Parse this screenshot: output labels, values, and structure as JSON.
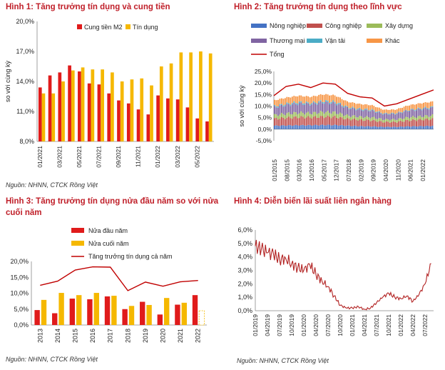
{
  "chart_data": [
    {
      "type": "bar",
      "title": "Hình 1: Tăng trưởng tín dụng và cung tiền",
      "ylabel": "so với cùng kỳ",
      "ylim": [
        8.0,
        20.0
      ],
      "yticks": [
        "8,0%",
        "11,0%",
        "14,0%",
        "17,0%",
        "20,0%"
      ],
      "categories": [
        "01/2021",
        "02/2021",
        "03/2021",
        "04/2021",
        "05/2021",
        "06/2021",
        "07/2021",
        "08/2021",
        "09/2021",
        "10/2021",
        "11/2021",
        "12/2021",
        "01/2022",
        "02/2022",
        "03/2022",
        "04/2022",
        "05/2022",
        "06/2022"
      ],
      "xtick_labels": [
        "01/2021",
        "03/2021",
        "05/2021",
        "07/2021",
        "09/2021",
        "11/2021",
        "01/2022",
        "03/2022",
        "05/2022"
      ],
      "series": [
        {
          "name": "Cung tiền M2",
          "color": "#e01b1b",
          "values": [
            13.4,
            14.6,
            14.9,
            15.6,
            15.0,
            13.8,
            13.7,
            12.8,
            12.1,
            11.8,
            11.2,
            10.7,
            12.6,
            12.3,
            12.2,
            11.4,
            10.3,
            10.0
          ]
        },
        {
          "name": "Tín dụng",
          "color": "#f5b800",
          "values": [
            12.8,
            12.8,
            14.0,
            15.1,
            15.4,
            15.2,
            15.2,
            14.9,
            14.0,
            14.2,
            14.3,
            13.6,
            15.5,
            15.8,
            16.9,
            16.9,
            17.0,
            16.8
          ]
        }
      ],
      "source": "Nguồn: NHNN, CTCK Rồng Việt"
    },
    {
      "type": "area",
      "title": "Hình 2: Tăng trưởng tín dụng theo lĩnh vực",
      "ylabel": "so với cùng kỳ",
      "ylim": [
        -5.0,
        25.0
      ],
      "yticks": [
        "-5,0%",
        "0,0%",
        "5,0%",
        "10,0%",
        "15,0%",
        "20,0%",
        "25,0%"
      ],
      "xtick_labels": [
        "01/2015",
        "08/2015",
        "03/2016",
        "10/2016",
        "05/2017",
        "12/2017",
        "07/2018",
        "02/2019",
        "09/2019",
        "04/2020",
        "11/2020",
        "06/2021",
        "01/2022"
      ],
      "legend": [
        {
          "name": "Nông nghiệp",
          "color": "#4472c4"
        },
        {
          "name": "Công nghiệp",
          "color": "#c0504d"
        },
        {
          "name": "Xây dựng",
          "color": "#9bbb59"
        },
        {
          "name": "Thương mại",
          "color": "#8064a2"
        },
        {
          "name": "Vận tải",
          "color": "#4bacc6"
        },
        {
          "name": "Khác",
          "color": "#f79646"
        },
        {
          "name": "Tổng",
          "color": "#c00000"
        }
      ],
      "x_points": [
        "01/2015",
        "08/2015",
        "03/2016",
        "10/2016",
        "05/2017",
        "12/2017",
        "07/2018",
        "02/2019",
        "09/2019",
        "04/2020",
        "11/2020",
        "06/2021",
        "01/2022",
        "06/2022"
      ],
      "stack_values": {
        "Nông nghiệp": [
          1.5,
          1.6,
          1.7,
          1.7,
          1.8,
          1.8,
          1.5,
          1.3,
          1.2,
          1.0,
          1.0,
          1.2,
          1.3,
          1.4
        ],
        "Công nghiệp": [
          3.0,
          3.3,
          3.5,
          3.4,
          3.6,
          3.5,
          2.9,
          2.7,
          2.6,
          2.1,
          2.1,
          2.6,
          2.8,
          3.0
        ],
        "Xây dựng": [
          1.6,
          1.8,
          1.9,
          1.8,
          2.0,
          1.9,
          1.5,
          1.4,
          1.3,
          1.1,
          1.1,
          1.3,
          1.4,
          1.5
        ],
        "Thương mại": [
          3.4,
          3.8,
          4.0,
          3.9,
          4.2,
          4.0,
          3.3,
          3.0,
          2.9,
          2.3,
          2.4,
          2.9,
          3.1,
          3.3
        ],
        "Vận tải": [
          0.5,
          0.5,
          0.6,
          0.5,
          0.6,
          0.6,
          0.4,
          0.4,
          0.4,
          0.3,
          0.3,
          0.3,
          0.4,
          0.4
        ],
        "Khác": [
          2.5,
          2.7,
          2.8,
          2.7,
          2.9,
          2.8,
          2.3,
          2.1,
          2.0,
          1.6,
          1.6,
          2.0,
          2.2,
          2.3
        ]
      },
      "total": [
        14.5,
        18.5,
        19.5,
        18.0,
        20.0,
        19.5,
        15.5,
        14.0,
        13.5,
        10.0,
        11.0,
        13.0,
        15.0,
        17.0
      ],
      "source": "Nguồn: NHNN, CTCK Rồng Việt"
    },
    {
      "type": "bar",
      "title": "Hình 3: Tăng trưởng tín dụng nửa đầu năm so với nửa cuối năm",
      "title_lines": [
        "Hình 3: Tăng trưởng tín dụng nửa đầu năm so với nửa",
        "cuối năm"
      ],
      "ylim": [
        0.0,
        20.0
      ],
      "yticks": [
        "0,0%",
        "5,0%",
        "10,0%",
        "15,0%",
        "20,0%"
      ],
      "categories": [
        "2013",
        "2014",
        "2015",
        "2016",
        "2017",
        "2018",
        "2019",
        "2020",
        "2021",
        "2022"
      ],
      "series": [
        {
          "name": "Nửa đầu năm",
          "color": "#e01b1b",
          "values": [
            4.7,
            3.7,
            8.3,
            8.1,
            9.0,
            5.0,
            7.3,
            3.3,
            6.4,
            9.4
          ]
        },
        {
          "name": "Nửa cuối năm",
          "color": "#f5b800",
          "values": [
            7.9,
            10.1,
            9.4,
            10.1,
            9.2,
            6.0,
            6.3,
            8.5,
            7.0,
            4.5
          ]
        },
        {
          "name": "Tăng trưởng tín dụng cả năm",
          "color": "#c00000",
          "type": "line",
          "values": [
            12.5,
            13.8,
            17.3,
            18.3,
            18.2,
            10.8,
            13.5,
            12.2,
            13.6,
            14.0
          ]
        }
      ],
      "last_nua_cuoi_dashed": true,
      "source": "Nguồn: NHNN, CTCK Rồng Việt"
    },
    {
      "type": "line",
      "title": "Hình 4: Diễn biến lãi suất liên ngân hàng",
      "ylim": [
        0.0,
        6.0
      ],
      "yticks": [
        "0,0%",
        "1,0%",
        "2,0%",
        "3,0%",
        "4,0%",
        "5,0%",
        "6,0%"
      ],
      "xtick_labels": [
        "01/2019",
        "04/2019",
        "07/2019",
        "10/2019",
        "01/2020",
        "04/2020",
        "07/2020",
        "10/2020",
        "01/2021",
        "04/2021",
        "07/2021",
        "10/2021",
        "01/2022",
        "04/2022",
        "07/2022"
      ],
      "x_points": [
        0,
        0.5,
        1,
        1.5,
        2,
        2.5,
        3,
        3.5,
        4,
        4.5,
        5,
        5.5,
        6,
        6.5,
        7,
        7.5,
        8,
        8.5,
        9,
        9.5,
        10,
        10.5,
        11,
        11.5,
        12,
        12.5,
        13,
        13.5,
        14,
        14.5
      ],
      "values": [
        4.8,
        4.6,
        4.3,
        4.2,
        3.8,
        3.9,
        3.5,
        3.2,
        3.0,
        3.4,
        2.7,
        2.2,
        1.8,
        1.1,
        0.4,
        0.2,
        0.2,
        0.3,
        0.1,
        0.2,
        0.6,
        1.0,
        1.3,
        1.0,
        0.9,
        1.1,
        0.7,
        1.2,
        2.0,
        3.5
      ],
      "series_color": "#b22222",
      "source": "Nguồn: NHNN, CTCK Rồng Việt"
    }
  ]
}
